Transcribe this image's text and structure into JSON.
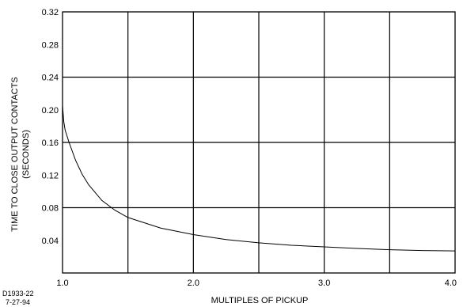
{
  "chart_data": {
    "type": "line",
    "title": "",
    "xlabel": "MULTIPLES OF PICKUP",
    "ylabel_lines": [
      "TIME TO CLOSE OUTPUT CONTACTS",
      "(SECONDS)"
    ],
    "xlim": [
      1.0,
      4.0
    ],
    "ylim": [
      0.0,
      0.32
    ],
    "x_tick_values": [
      1.0,
      2.0,
      3.0,
      4.0
    ],
    "x_tick_labels": [
      "1.0",
      "2.0",
      "3.0",
      "4.0"
    ],
    "x_grid_values": [
      1.5,
      2.0,
      2.5,
      3.0,
      3.5
    ],
    "y_tick_values": [
      0.04,
      0.08,
      0.12,
      0.16,
      0.2,
      0.24,
      0.28,
      0.32
    ],
    "y_tick_labels": [
      "0.04",
      "0.08",
      "0.12",
      "0.16",
      "0.20",
      "0.24",
      "0.28",
      "0.32"
    ],
    "y_grid_values": [
      0.08,
      0.16,
      0.24
    ],
    "grid": true,
    "series": [
      {
        "x": [
          1.0,
          1.01,
          1.02,
          1.05,
          1.1,
          1.15,
          1.2,
          1.3,
          1.4,
          1.5,
          1.75,
          2.0,
          2.25,
          2.5,
          2.75,
          3.0,
          3.25,
          3.5,
          3.75,
          4.0
        ],
        "y": [
          0.205,
          0.185,
          0.175,
          0.16,
          0.138,
          0.121,
          0.108,
          0.089,
          0.077,
          0.068,
          0.055,
          0.047,
          0.041,
          0.037,
          0.034,
          0.032,
          0.03,
          0.0285,
          0.0275,
          0.027
        ]
      }
    ],
    "annotations": [
      "D1933-22",
      "7-27-94"
    ]
  }
}
